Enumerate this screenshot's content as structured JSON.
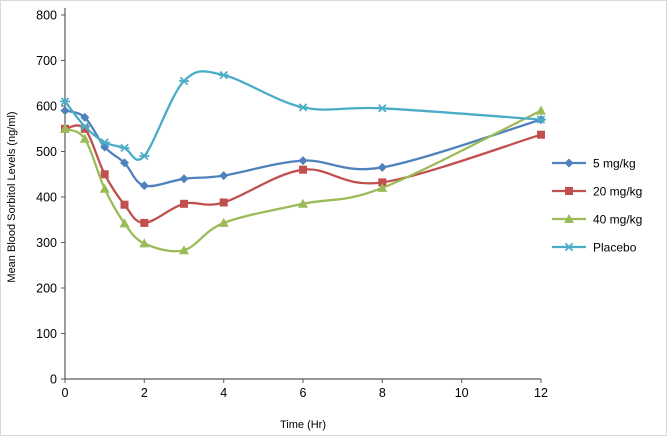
{
  "chart_data": {
    "type": "line",
    "title": "",
    "xlabel": "Time (Hr)",
    "ylabel": "Mean Blood Sorbitol Levels (ng/ml)",
    "xlim": [
      0,
      12
    ],
    "ylim": [
      0,
      800
    ],
    "x_ticks": [
      0,
      2,
      4,
      6,
      8,
      10,
      12
    ],
    "y_ticks": [
      0,
      100,
      200,
      300,
      400,
      500,
      600,
      700,
      800
    ],
    "grid": false,
    "legend_position": "right",
    "line_style": "smooth",
    "x": [
      0,
      0.5,
      1,
      1.5,
      2,
      3,
      4,
      6,
      8,
      12
    ],
    "series": [
      {
        "name": "5 mg/kg",
        "color": "#4F81BD",
        "marker": "diamond",
        "values": [
          590,
          575,
          510,
          475,
          425,
          440,
          447,
          480,
          465,
          570
        ]
      },
      {
        "name": "20 mg/kg",
        "color": "#C0504D",
        "marker": "square",
        "values": [
          550,
          550,
          450,
          383,
          343,
          385,
          388,
          460,
          432,
          537
        ]
      },
      {
        "name": "40 mg/kg",
        "color": "#9BBB59",
        "marker": "triangle",
        "values": [
          550,
          528,
          418,
          342,
          298,
          283,
          343,
          385,
          420,
          590
        ]
      },
      {
        "name": "Placebo",
        "color": "#4BACC6",
        "marker": "star",
        "values": [
          610,
          555,
          520,
          508,
          490,
          655,
          668,
          597,
          595,
          570
        ]
      }
    ]
  }
}
